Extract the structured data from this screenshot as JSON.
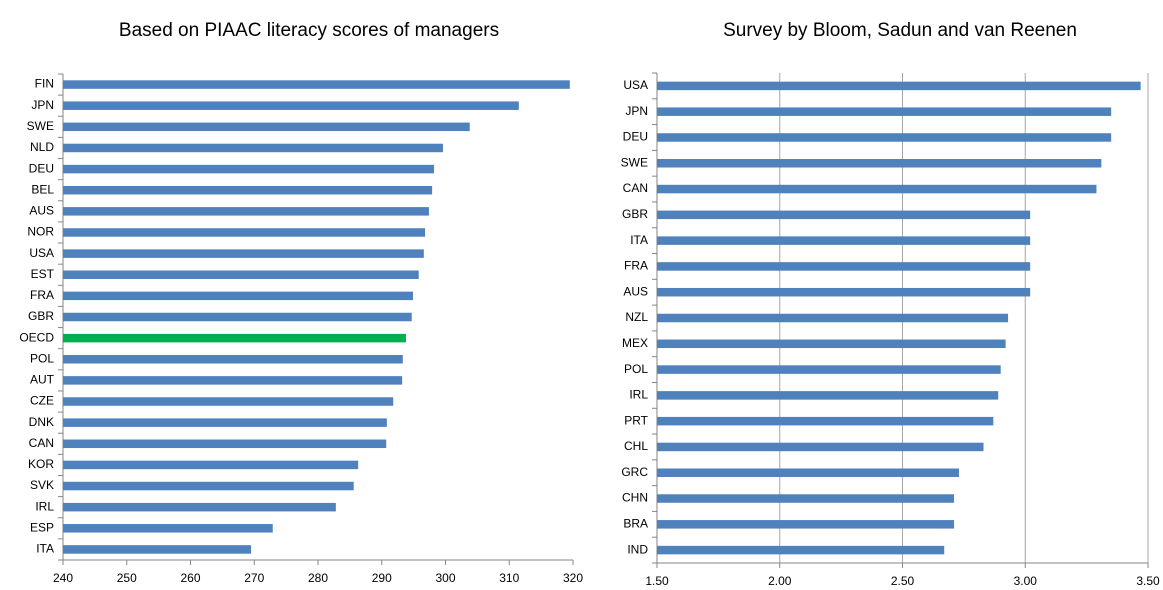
{
  "chart_data": [
    {
      "type": "bar",
      "orientation": "horizontal",
      "title": "Based on PIAAC literacy scores of managers",
      "categories": [
        "FIN",
        "JPN",
        "SWE",
        "NLD",
        "DEU",
        "BEL",
        "AUS",
        "NOR",
        "USA",
        "EST",
        "FRA",
        "GBR",
        "OECD",
        "POL",
        "AUT",
        "CZE",
        "DNK",
        "CAN",
        "KOR",
        "SVK",
        "IRL",
        "ESP",
        "ITA"
      ],
      "values": [
        319.5,
        311.5,
        303.8,
        299.6,
        298.2,
        297.9,
        297.4,
        296.8,
        296.6,
        295.8,
        294.9,
        294.7,
        293.8,
        293.3,
        293.2,
        291.8,
        290.8,
        290.7,
        286.3,
        285.6,
        282.8,
        272.9,
        269.5
      ],
      "colors": [
        "#4f81bd",
        "#4f81bd",
        "#4f81bd",
        "#4f81bd",
        "#4f81bd",
        "#4f81bd",
        "#4f81bd",
        "#4f81bd",
        "#4f81bd",
        "#4f81bd",
        "#4f81bd",
        "#4f81bd",
        "#00b050",
        "#4f81bd",
        "#4f81bd",
        "#4f81bd",
        "#4f81bd",
        "#4f81bd",
        "#4f81bd",
        "#4f81bd",
        "#4f81bd",
        "#4f81bd",
        "#4f81bd"
      ],
      "xlim": [
        240,
        320
      ],
      "xticks": [
        240,
        250,
        260,
        270,
        280,
        290,
        300,
        310,
        320
      ],
      "grid": false
    },
    {
      "type": "bar",
      "orientation": "horizontal",
      "title": "Survey by Bloom, Sadun and van Reenen",
      "categories": [
        "USA",
        "JPN",
        "DEU",
        "SWE",
        "CAN",
        "GBR",
        "ITA",
        "FRA",
        "AUS",
        "NZL",
        "MEX",
        "POL",
        "IRL",
        "PRT",
        "CHL",
        "GRC",
        "CHN",
        "BRA",
        "IND"
      ],
      "values": [
        3.47,
        3.35,
        3.35,
        3.31,
        3.29,
        3.02,
        3.02,
        3.02,
        3.02,
        2.93,
        2.92,
        2.9,
        2.89,
        2.87,
        2.83,
        2.73,
        2.71,
        2.71,
        2.67
      ],
      "color": "#4f81bd",
      "xlim": [
        1.5,
        3.5
      ],
      "xticks": [
        {
          "value": 1.5,
          "label": "1.50"
        },
        {
          "value": 2,
          "label": "2.00"
        },
        {
          "value": 2.5,
          "label": "2.50"
        },
        {
          "value": 3,
          "label": "3.00"
        },
        {
          "value": 3.5,
          "label": "3.50"
        }
      ],
      "grid": true
    }
  ]
}
